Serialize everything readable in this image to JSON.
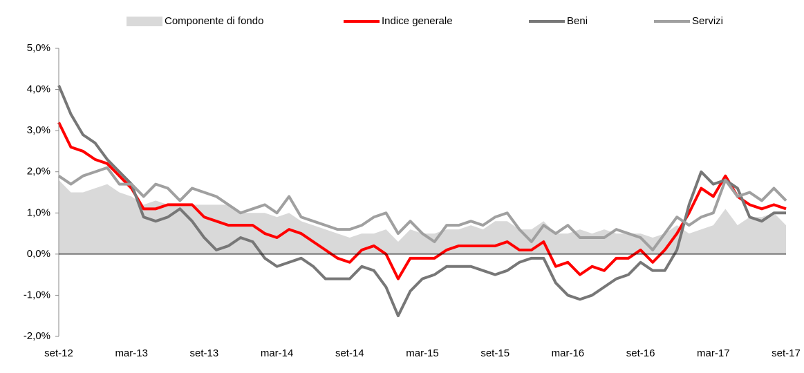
{
  "chart_data": {
    "type": "line",
    "categories": [
      "set-12",
      null,
      null,
      null,
      null,
      null,
      "mar-13",
      null,
      null,
      null,
      null,
      null,
      "set-13",
      null,
      null,
      null,
      null,
      null,
      "mar-14",
      null,
      null,
      null,
      null,
      null,
      "set-14",
      null,
      null,
      null,
      null,
      null,
      "mar-15",
      null,
      null,
      null,
      null,
      null,
      "set-15",
      null,
      null,
      null,
      null,
      null,
      "mar-16",
      null,
      null,
      null,
      null,
      null,
      "set-16",
      null,
      null,
      null,
      null,
      null,
      "mar-17",
      null,
      null,
      null,
      null,
      null,
      "set-17"
    ],
    "series": [
      {
        "name": "Componente di fondo",
        "kind": "area",
        "color": "#d9d9d9",
        "values": [
          1.8,
          1.5,
          1.5,
          1.6,
          1.7,
          1.5,
          1.4,
          1.2,
          1.3,
          1.2,
          1.2,
          1.2,
          1.2,
          1.2,
          1.2,
          1.0,
          1.0,
          1.0,
          0.9,
          1.0,
          0.8,
          0.7,
          0.6,
          0.5,
          0.4,
          0.5,
          0.5,
          0.6,
          0.3,
          0.6,
          0.5,
          0.5,
          0.6,
          0.6,
          0.7,
          0.6,
          0.8,
          0.8,
          0.6,
          0.6,
          0.8,
          0.5,
          0.5,
          0.6,
          0.5,
          0.6,
          0.5,
          0.5,
          0.5,
          0.4,
          0.5,
          0.7,
          0.5,
          0.6,
          0.7,
          1.1,
          0.7,
          0.9,
          0.9,
          1.0,
          0.7
        ]
      },
      {
        "name": "Indice generale",
        "kind": "line",
        "color": "#ff0000",
        "values": [
          3.2,
          2.6,
          2.5,
          2.3,
          2.2,
          1.9,
          1.6,
          1.1,
          1.1,
          1.2,
          1.2,
          1.2,
          0.9,
          0.8,
          0.7,
          0.7,
          0.7,
          0.5,
          0.4,
          0.6,
          0.5,
          0.3,
          0.1,
          -0.1,
          -0.2,
          0.1,
          0.2,
          0.0,
          -0.6,
          -0.1,
          -0.1,
          -0.1,
          0.1,
          0.2,
          0.2,
          0.2,
          0.2,
          0.3,
          0.1,
          0.1,
          0.3,
          -0.3,
          -0.2,
          -0.5,
          -0.3,
          -0.4,
          -0.1,
          -0.1,
          0.1,
          -0.2,
          0.1,
          0.5,
          1.0,
          1.6,
          1.4,
          1.9,
          1.4,
          1.2,
          1.1,
          1.2,
          1.1
        ]
      },
      {
        "name": "Beni",
        "kind": "line",
        "color": "#777777",
        "values": [
          4.1,
          3.4,
          2.9,
          2.7,
          2.3,
          2.0,
          1.7,
          0.9,
          0.8,
          0.9,
          1.1,
          0.8,
          0.4,
          0.1,
          0.2,
          0.4,
          0.3,
          -0.1,
          -0.3,
          -0.2,
          -0.1,
          -0.3,
          -0.6,
          -0.6,
          -0.6,
          -0.3,
          -0.4,
          -0.8,
          -1.5,
          -0.9,
          -0.6,
          -0.5,
          -0.3,
          -0.3,
          -0.3,
          -0.4,
          -0.5,
          -0.4,
          -0.2,
          -0.1,
          -0.1,
          -0.7,
          -1.0,
          -1.1,
          -1.0,
          -0.8,
          -0.6,
          -0.5,
          -0.2,
          -0.4,
          -0.4,
          0.1,
          1.2,
          2.0,
          1.7,
          1.8,
          1.6,
          0.9,
          0.8,
          1.0,
          1.0
        ]
      },
      {
        "name": "Servizi",
        "kind": "line",
        "color": "#a0a0a0",
        "values": [
          1.9,
          1.7,
          1.9,
          2.0,
          2.1,
          1.7,
          1.7,
          1.4,
          1.7,
          1.6,
          1.3,
          1.6,
          1.5,
          1.4,
          1.2,
          1.0,
          1.1,
          1.2,
          1.0,
          1.4,
          0.9,
          0.8,
          0.7,
          0.6,
          0.6,
          0.7,
          0.9,
          1.0,
          0.5,
          0.8,
          0.5,
          0.3,
          0.7,
          0.7,
          0.8,
          0.7,
          0.9,
          1.0,
          0.6,
          0.3,
          0.7,
          0.5,
          0.7,
          0.4,
          0.4,
          0.4,
          0.6,
          0.5,
          0.4,
          0.1,
          0.5,
          0.9,
          0.7,
          0.9,
          1.0,
          1.8,
          1.4,
          1.5,
          1.3,
          1.6,
          1.3
        ]
      }
    ],
    "ylim": [
      -2,
      5
    ],
    "yticks": [
      {
        "value": 5,
        "label": "5,0%"
      },
      {
        "value": 4,
        "label": "4,0%"
      },
      {
        "value": 3,
        "label": "3,0%"
      },
      {
        "value": 2,
        "label": "2,0%"
      },
      {
        "value": 1,
        "label": "1,0%"
      },
      {
        "value": 0,
        "label": "0,0%"
      },
      {
        "value": -1,
        "label": "-1,0%"
      },
      {
        "value": -2,
        "label": "-2,0%"
      }
    ],
    "grid": false,
    "legend": "top"
  }
}
